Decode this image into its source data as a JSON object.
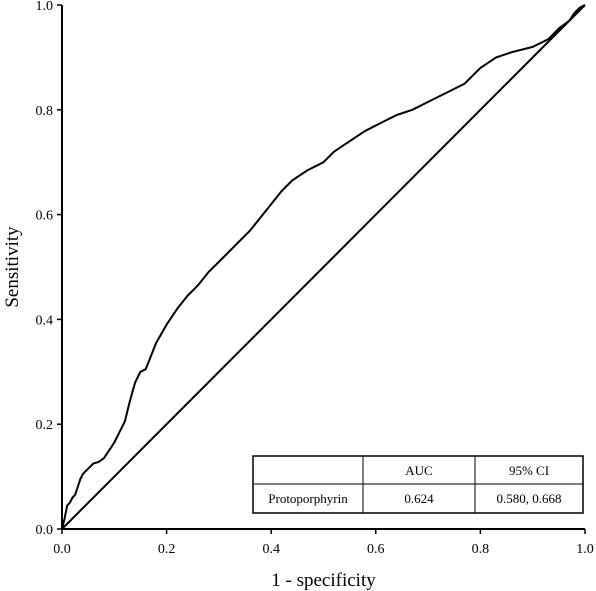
{
  "chart_data": {
    "type": "line",
    "title": "",
    "xlabel": "1 - specificity",
    "ylabel": "Sensitivity",
    "xlim": [
      0,
      1
    ],
    "ylim": [
      0,
      1
    ],
    "x_ticks": [
      "0.0",
      "0.2",
      "0.4",
      "0.6",
      "0.8",
      "1.0"
    ],
    "y_ticks": [
      "0.0",
      "0.2",
      "0.4",
      "0.6",
      "0.8",
      "1.0"
    ],
    "grid": false,
    "series": [
      {
        "x": [
          0.0,
          0.005,
          0.01,
          0.015,
          0.02,
          0.025,
          0.03,
          0.035,
          0.04,
          0.05,
          0.06,
          0.07,
          0.08,
          0.09,
          0.1,
          0.11,
          0.12,
          0.13,
          0.14,
          0.15,
          0.16,
          0.17,
          0.18,
          0.2,
          0.22,
          0.24,
          0.26,
          0.28,
          0.3,
          0.32,
          0.34,
          0.36,
          0.38,
          0.4,
          0.42,
          0.44,
          0.47,
          0.5,
          0.52,
          0.55,
          0.58,
          0.61,
          0.64,
          0.67,
          0.7,
          0.74,
          0.77,
          0.8,
          0.83,
          0.86,
          0.9,
          0.93,
          0.95,
          0.97,
          0.98,
          0.99,
          1.0
        ],
        "y": [
          0.0,
          0.02,
          0.045,
          0.05,
          0.06,
          0.065,
          0.08,
          0.095,
          0.105,
          0.115,
          0.125,
          0.128,
          0.135,
          0.15,
          0.165,
          0.185,
          0.205,
          0.245,
          0.28,
          0.3,
          0.305,
          0.33,
          0.355,
          0.39,
          0.42,
          0.445,
          0.465,
          0.49,
          0.51,
          0.53,
          0.55,
          0.57,
          0.595,
          0.62,
          0.645,
          0.665,
          0.685,
          0.7,
          0.72,
          0.74,
          0.76,
          0.775,
          0.79,
          0.8,
          0.815,
          0.835,
          0.85,
          0.88,
          0.9,
          0.91,
          0.92,
          0.935,
          0.955,
          0.97,
          0.985,
          0.995,
          1.0
        ]
      }
    ],
    "reference_line": {
      "x": [
        0,
        1
      ],
      "y": [
        0,
        1
      ]
    },
    "table": {
      "headers": [
        "",
        "AUC",
        "95% CI"
      ],
      "rows": [
        [
          "Protoporphyrin",
          "0.624",
          "0.580, 0.668"
        ]
      ]
    }
  }
}
